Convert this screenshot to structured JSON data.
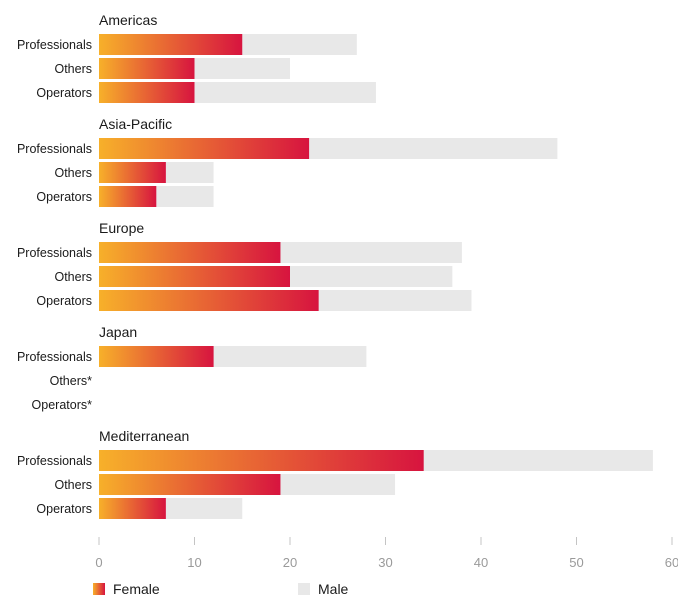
{
  "chart_data": {
    "type": "bar",
    "orientation": "horizontal",
    "stacking": "overlay",
    "groups": [
      {
        "name": "Americas",
        "rows": [
          {
            "label": "Professionals",
            "female": 15,
            "male": 27
          },
          {
            "label": "Others",
            "female": 10,
            "male": 20
          },
          {
            "label": "Operators",
            "female": 10,
            "male": 29
          }
        ]
      },
      {
        "name": "Asia-Pacific",
        "rows": [
          {
            "label": "Professionals",
            "female": 22,
            "male": 48
          },
          {
            "label": "Others",
            "female": 7,
            "male": 12
          },
          {
            "label": "Operators",
            "female": 6,
            "male": 12
          }
        ]
      },
      {
        "name": "Europe",
        "rows": [
          {
            "label": "Professionals",
            "female": 19,
            "male": 38
          },
          {
            "label": "Others",
            "female": 20,
            "male": 37
          },
          {
            "label": "Operators",
            "female": 23,
            "male": 39
          }
        ]
      },
      {
        "name": "Japan",
        "rows": [
          {
            "label": "Professionals",
            "female": 12,
            "male": 28
          },
          {
            "label": "Others*",
            "female": null,
            "male": null
          },
          {
            "label": "Operators*",
            "female": null,
            "male": null
          }
        ]
      },
      {
        "name": "Mediterranean",
        "rows": [
          {
            "label": "Professionals",
            "female": 34,
            "male": 58
          },
          {
            "label": "Others",
            "female": 19,
            "male": 31
          },
          {
            "label": "Operators",
            "female": 7,
            "male": 15
          }
        ]
      }
    ],
    "series": [
      {
        "name": "Female",
        "key": "female",
        "color_start": "#f7b02a",
        "color_end": "#d7143f"
      },
      {
        "name": "Male",
        "key": "male",
        "color": "#e8e8e8"
      }
    ],
    "xlim": [
      0,
      60
    ],
    "xticks": [
      0,
      10,
      20,
      30,
      40,
      50,
      60
    ],
    "grid": false,
    "legend_position": "bottom-left"
  }
}
